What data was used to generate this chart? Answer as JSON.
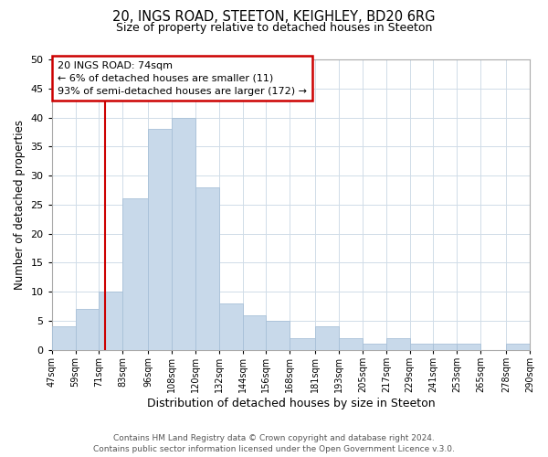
{
  "title": "20, INGS ROAD, STEETON, KEIGHLEY, BD20 6RG",
  "subtitle": "Size of property relative to detached houses in Steeton",
  "xlabel": "Distribution of detached houses by size in Steeton",
  "ylabel": "Number of detached properties",
  "bar_color": "#c8d9ea",
  "bar_edgecolor": "#a8c0d8",
  "background_color": "#ffffff",
  "grid_color": "#d0dce8",
  "annotation_box_edgecolor": "#cc0000",
  "vline_color": "#cc0000",
  "vline_x": 74,
  "annotation_title": "20 INGS ROAD: 74sqm",
  "annotation_line1": "← 6% of detached houses are smaller (11)",
  "annotation_line2": "93% of semi-detached houses are larger (172) →",
  "footer_line1": "Contains HM Land Registry data © Crown copyright and database right 2024.",
  "footer_line2": "Contains public sector information licensed under the Open Government Licence v.3.0.",
  "bin_edges": [
    47,
    59,
    71,
    83,
    96,
    108,
    120,
    132,
    144,
    156,
    168,
    181,
    193,
    205,
    217,
    229,
    241,
    253,
    265,
    278,
    290
  ],
  "bin_labels": [
    "47sqm",
    "59sqm",
    "71sqm",
    "83sqm",
    "96sqm",
    "108sqm",
    "120sqm",
    "132sqm",
    "144sqm",
    "156sqm",
    "168sqm",
    "181sqm",
    "193sqm",
    "205sqm",
    "217sqm",
    "229sqm",
    "241sqm",
    "253sqm",
    "265sqm",
    "278sqm",
    "290sqm"
  ],
  "counts": [
    4,
    7,
    10,
    26,
    38,
    40,
    28,
    8,
    6,
    5,
    2,
    4,
    2,
    1,
    2,
    1,
    1,
    1,
    0,
    1
  ],
  "ylim": [
    0,
    50
  ],
  "yticks": [
    0,
    5,
    10,
    15,
    20,
    25,
    30,
    35,
    40,
    45,
    50
  ],
  "title_fontsize": 10.5,
  "subtitle_fontsize": 9,
  "xlabel_fontsize": 9,
  "ylabel_fontsize": 8.5,
  "xtick_fontsize": 7,
  "ytick_fontsize": 8,
  "annotation_fontsize": 8,
  "footer_fontsize": 6.5
}
